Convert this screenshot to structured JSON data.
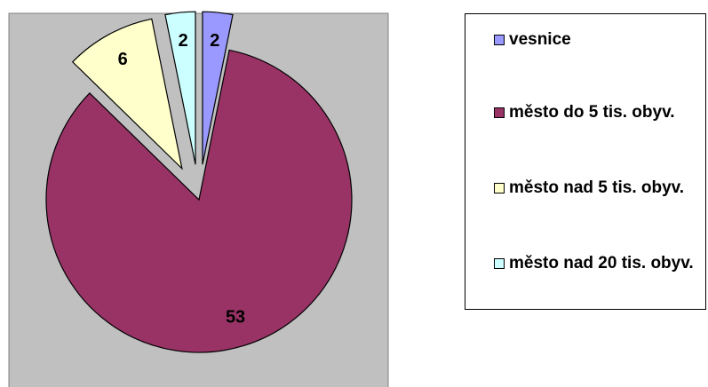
{
  "chart_data": {
    "type": "pie",
    "categories": [
      "vesnice",
      "město do 5 tis. obyv.",
      "město nad 5 tis. obyv.",
      "město nad 20 tis. obyv."
    ],
    "values": [
      2,
      53,
      6,
      2
    ],
    "colors": [
      "#9999ff",
      "#993366",
      "#ffffcc",
      "#ccffff"
    ],
    "exploded": [
      true,
      false,
      true,
      true
    ],
    "legend": "right"
  }
}
